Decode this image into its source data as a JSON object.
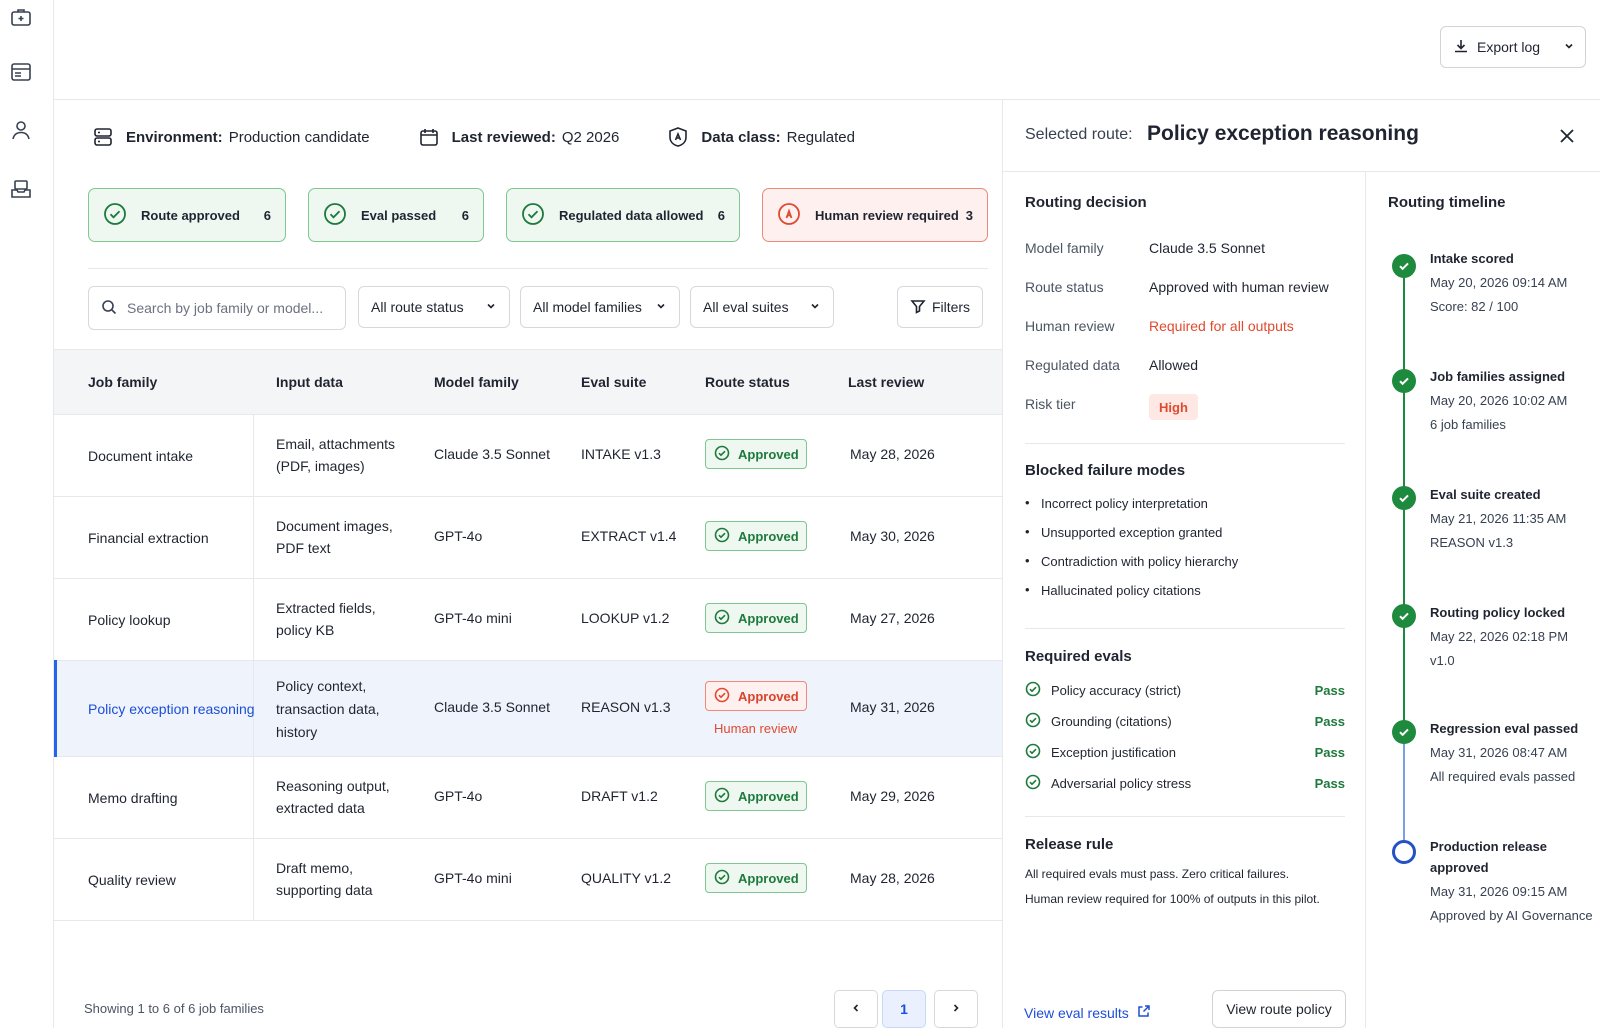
{
  "rail": {
    "icons": [
      "briefcase-icon",
      "server-window-icon",
      "user-icon",
      "inbox-stack-icon"
    ]
  },
  "topbar": {
    "export_label": "Export log"
  },
  "meta": {
    "env_key": "Environment:",
    "env_val": "Production candidate",
    "rev_key": "Last reviewed:",
    "rev_val": "Q2 2026",
    "class_key": "Data class:",
    "class_val": "Regulated"
  },
  "chips": [
    {
      "label": "Route approved",
      "count": "6",
      "tone": "ok"
    },
    {
      "label": "Eval passed",
      "count": "6",
      "tone": "ok"
    },
    {
      "label": "Regulated data allowed",
      "count": "6",
      "tone": "ok"
    },
    {
      "label": "Human review required",
      "count": "3",
      "tone": "warn"
    }
  ],
  "filters": {
    "search_placeholder": "Search by job family or model...",
    "route_status": "All route status",
    "model_families": "All model families",
    "eval_suites": "All eval suites",
    "filters_label": "Filters"
  },
  "table": {
    "headers": [
      "Job family",
      "Input data",
      "Model family",
      "Eval suite",
      "Route status",
      "Last review"
    ],
    "rows": [
      {
        "job": "Document intake",
        "input1": "Email, attachments",
        "input2": "(PDF, images)",
        "input3": "",
        "model": "Claude 3.5 Sonnet",
        "suite": "INTAKE v1.3",
        "status": "Approved",
        "note": "",
        "date": "May 28, 2026"
      },
      {
        "job": "Financial extraction",
        "input1": "Document images,",
        "input2": "PDF text",
        "input3": "",
        "model": "GPT-4o",
        "suite": "EXTRACT v1.4",
        "status": "Approved",
        "note": "",
        "date": "May 30, 2026"
      },
      {
        "job": "Policy lookup",
        "input1": "Extracted fields,",
        "input2": "policy KB",
        "input3": "",
        "model": "GPT-4o mini",
        "suite": "LOOKUP v1.2",
        "status": "Approved",
        "note": "",
        "date": "May 27, 2026"
      },
      {
        "job": "Policy exception reasoning",
        "input1": "Policy context,",
        "input2": "transaction data,",
        "input3": "history",
        "model": "Claude 3.5 Sonnet",
        "suite": "REASON v1.3",
        "status": "Approved",
        "note": "Human review",
        "date": "May 31, 2026"
      },
      {
        "job": "Memo drafting",
        "input1": "Reasoning output,",
        "input2": "extracted data",
        "input3": "",
        "model": "GPT-4o",
        "suite": "DRAFT v1.2",
        "status": "Approved",
        "note": "",
        "date": "May 29, 2026"
      },
      {
        "job": "Quality review",
        "input1": "Draft memo,",
        "input2": "supporting data",
        "input3": "",
        "model": "GPT-4o mini",
        "suite": "QUALITY v1.2",
        "status": "Approved",
        "note": "",
        "date": "May 28, 2026"
      }
    ],
    "footer": "Showing 1 to 6 of 6 job families",
    "page": "1"
  },
  "panel": {
    "selected_label": "Selected route:",
    "selected_name": "Policy exception reasoning",
    "decision_title": "Routing decision",
    "decision": [
      {
        "k": "Model family",
        "v": "Claude 3.5 Sonnet"
      },
      {
        "k": "Route status",
        "v": "Approved with human review"
      },
      {
        "k": "Human review",
        "v": "Required for all outputs"
      },
      {
        "k": "Regulated data",
        "v": "Allowed"
      },
      {
        "k": "Risk tier",
        "v": "High"
      }
    ],
    "blocked_title": "Blocked failure modes",
    "blocked": [
      "Incorrect policy interpretation",
      "Unsupported exception granted",
      "Contradiction with policy hierarchy",
      "Hallucinated policy citations"
    ],
    "evals_title": "Required evals",
    "evals": [
      {
        "name": "Policy accuracy (strict)",
        "result": "Pass"
      },
      {
        "name": "Grounding (citations)",
        "result": "Pass"
      },
      {
        "name": "Exception justification",
        "result": "Pass"
      },
      {
        "name": "Adversarial policy stress",
        "result": "Pass"
      }
    ],
    "release_title": "Release rule",
    "release_1": "All required evals must pass. Zero critical failures.",
    "release_2": "Human review required for 100% of outputs in this pilot.",
    "view_eval": "View eval results",
    "view_policy": "View route policy"
  },
  "timeline": {
    "title": "Routing timeline",
    "items": [
      {
        "title": "Intake scored",
        "line1": "May 20, 2026   09:14 AM",
        "line2": "Score: 82 / 100",
        "state": "done"
      },
      {
        "title": "Job families assigned",
        "line1": "May 20, 2026   10:02 AM",
        "line2": "6 job families",
        "state": "done"
      },
      {
        "title": "Eval suite created",
        "line1": "May 21, 2026   11:35 AM",
        "line2": "REASON v1.3",
        "state": "done"
      },
      {
        "title": "Routing policy locked",
        "line1": "May 22, 2026   02:18 PM",
        "line2": "v1.0",
        "state": "done"
      },
      {
        "title": "Regression eval passed",
        "line1": "May 31, 2026   08:47 AM",
        "line2": "All required evals passed",
        "state": "done"
      },
      {
        "title": "Production release",
        "title2": "approved",
        "line1": "May 31, 2026   09:15 AM",
        "line2": "Approved by AI Governance",
        "state": "pending"
      }
    ]
  },
  "colors": {
    "accent": "#1d4ed8",
    "success": "#1e8a3e",
    "danger": "#e04a2f",
    "timeline_pending": "#2451c6"
  }
}
